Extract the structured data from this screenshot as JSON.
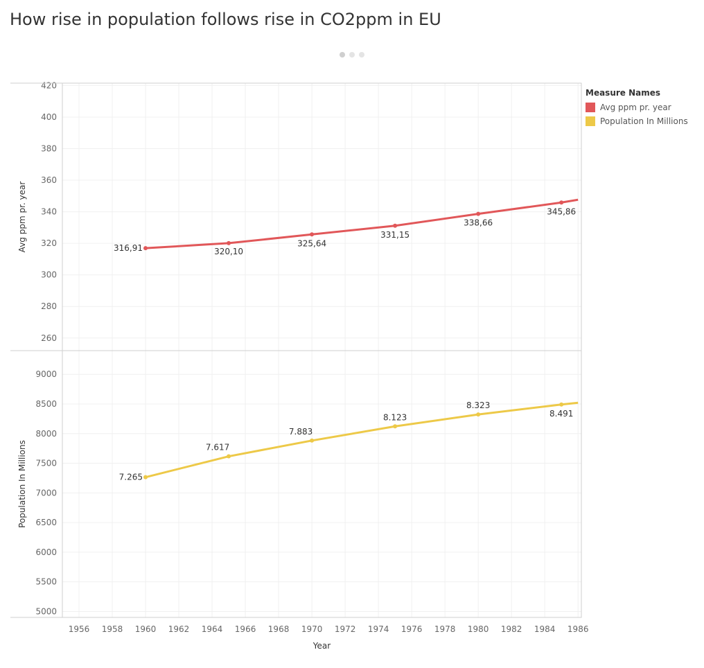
{
  "title": "How rise in population follows rise in CO2ppm in EU",
  "legend": {
    "title": "Measure Names",
    "items": [
      {
        "label": "Avg ppm pr. year",
        "color": "#e15759"
      },
      {
        "label": "Population In Millions",
        "color": "#edc948"
      }
    ]
  },
  "chart_data": {
    "type": "line",
    "xlabel": "Year",
    "x_ticks": [
      1956,
      1958,
      1960,
      1962,
      1964,
      1966,
      1968,
      1970,
      1972,
      1974,
      1976,
      1978,
      1980,
      1982,
      1984,
      1986
    ],
    "xlim": [
      1955,
      1986.2
    ],
    "grid": true,
    "legend_position": "top-right",
    "panels": [
      {
        "ylabel": "Avg ppm pr. year",
        "ylim": [
          252,
          421.5
        ],
        "y_ticks": [
          260,
          280,
          300,
          320,
          340,
          360,
          380,
          400,
          420
        ],
        "series": {
          "name": "Avg ppm pr. year",
          "color": "#e15759",
          "x": [
            1960,
            1965,
            1970,
            1975,
            1980,
            1985,
            1986
          ],
          "values": [
            316.91,
            320.1,
            325.64,
            331.15,
            338.66,
            345.86,
            347.6
          ],
          "labels": [
            "316,91",
            "320,10",
            "325,64",
            "331,15",
            "338,66",
            "345,86",
            ""
          ]
        }
      },
      {
        "ylabel": "Population In Millions",
        "ylim": [
          4900,
          9400
        ],
        "y_ticks": [
          5000,
          5500,
          6000,
          6500,
          7000,
          7500,
          8000,
          8500,
          9000
        ],
        "series": {
          "name": "Population In Millions",
          "color": "#edc948",
          "x": [
            1960,
            1965,
            1970,
            1975,
            1980,
            1985,
            1986
          ],
          "values": [
            7265,
            7617,
            7883,
            8123,
            8323,
            8491,
            8520
          ],
          "labels": [
            "7.265",
            "7.617",
            "7.883",
            "8.123",
            "8.323",
            "8.491",
            ""
          ]
        }
      }
    ]
  }
}
